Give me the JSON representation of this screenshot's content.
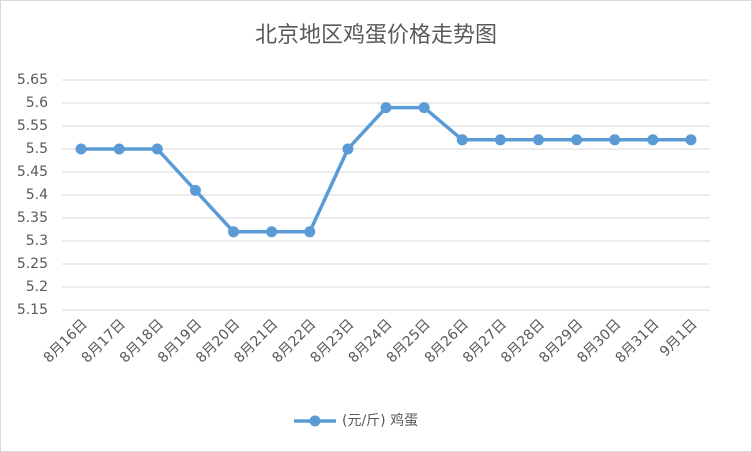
{
  "chart_data": {
    "type": "line",
    "title": "北京地区鸡蛋价格走势图",
    "categories": [
      "8月16日",
      "8月17日",
      "8月18日",
      "8月19日",
      "8月20日",
      "8月21日",
      "8月22日",
      "8月23日",
      "8月24日",
      "8月25日",
      "8月26日",
      "8月27日",
      "8月28日",
      "8月29日",
      "8月30日",
      "8月31日",
      "9月1日"
    ],
    "series": [
      {
        "name": "(元/斤) 鸡蛋",
        "color": "#5b9bd5",
        "values": [
          5.5,
          5.5,
          5.5,
          5.41,
          5.32,
          5.32,
          5.32,
          5.5,
          5.59,
          5.59,
          5.52,
          5.52,
          5.52,
          5.52,
          5.52,
          5.52,
          5.52
        ]
      }
    ],
    "ylim": [
      5.15,
      5.65
    ],
    "yticks": [
      5.15,
      5.2,
      5.25,
      5.3,
      5.35,
      5.4,
      5.45,
      5.5,
      5.55,
      5.6,
      5.65
    ],
    "grid": true,
    "legend": "bottom"
  }
}
